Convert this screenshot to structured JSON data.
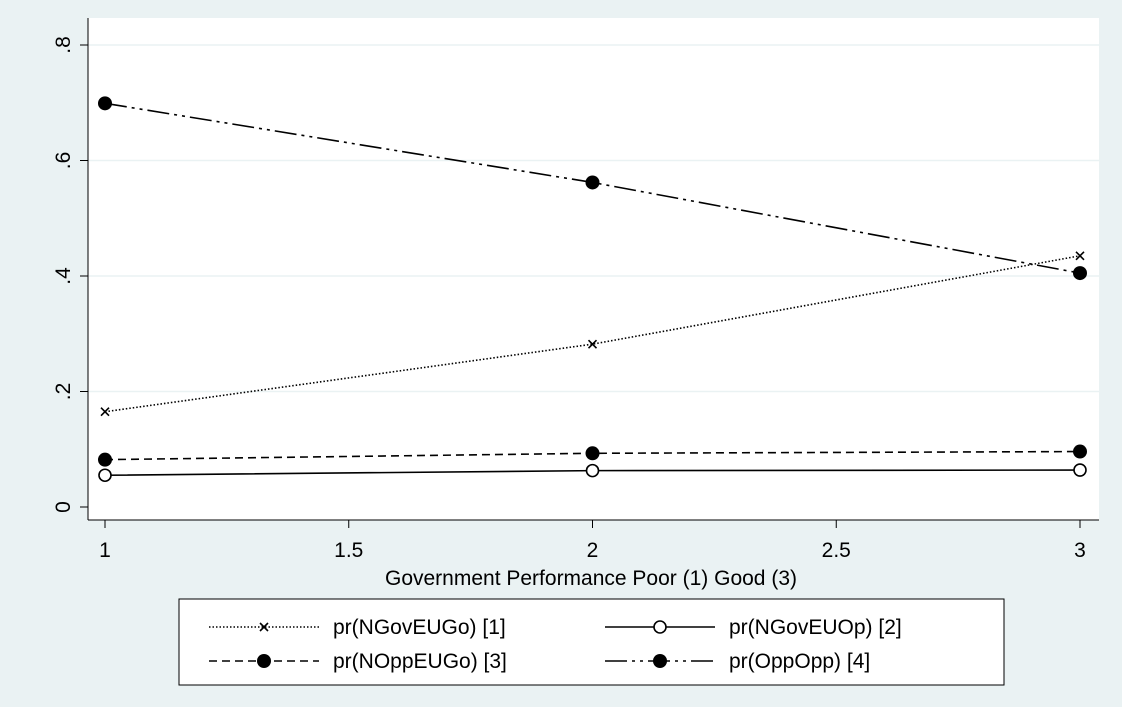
{
  "chart_data": {
    "type": "line",
    "xlabel": "Government Performance Poor (1) Good (3)",
    "ylabel": "",
    "xlim": [
      1,
      3
    ],
    "ylim": [
      0,
      0.8
    ],
    "x_ticks": [
      1,
      1.5,
      2,
      2.5,
      3
    ],
    "x_tick_labels": [
      "1",
      "1.5",
      "2",
      "2.5",
      "3"
    ],
    "y_ticks": [
      0,
      0.2,
      0.4,
      0.6,
      0.8
    ],
    "y_tick_labels": [
      "0",
      ".2",
      ".4",
      ".6",
      ".8"
    ],
    "grid": "horizontal",
    "legend_position": "bottom",
    "x": [
      1,
      2,
      3
    ],
    "series": [
      {
        "name": "pr(NGovEUGo) [1]",
        "values": [
          0.165,
          0.282,
          0.435
        ],
        "marker": "x",
        "dash": "dotted"
      },
      {
        "name": "pr(NGovEUOp) [2]",
        "values": [
          0.055,
          0.063,
          0.064
        ],
        "marker": "hollow-circle",
        "dash": "solid"
      },
      {
        "name": "pr(NOppEUGo) [3]",
        "values": [
          0.082,
          0.093,
          0.096
        ],
        "marker": "filled-circle",
        "dash": "dashed"
      },
      {
        "name": "pr(OppOpp) [4]",
        "values": [
          0.699,
          0.562,
          0.405
        ],
        "marker": "filled-circle",
        "dash": "dash-dot-dot"
      }
    ]
  }
}
